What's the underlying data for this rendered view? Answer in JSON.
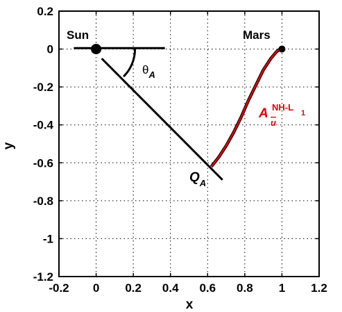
{
  "chart_data": {
    "type": "line",
    "title": "",
    "xlabel": "x",
    "ylabel": "y",
    "xlim": [
      -0.2,
      1.2
    ],
    "ylim": [
      -1.2,
      0.2
    ],
    "grid": true,
    "xticks": [
      "-0.2",
      "0",
      "0.2",
      "0.4",
      "0.6",
      "0.8",
      "1",
      "1.2"
    ],
    "yticks": [
      "0.2",
      "0",
      "-0.2",
      "-0.4",
      "-0.6",
      "-0.8",
      "-1",
      "-1.2"
    ],
    "xtick_values": [
      -0.2,
      0,
      0.2,
      0.4,
      0.6,
      0.8,
      1,
      1.2
    ],
    "ytick_values": [
      0.2,
      0,
      -0.2,
      -0.4,
      -0.6,
      -0.8,
      -1,
      -1.2
    ],
    "points": [
      {
        "name": "Sun",
        "x": 0,
        "y": 0
      },
      {
        "name": "Mars",
        "x": 1,
        "y": 0
      }
    ],
    "segments": [
      {
        "name": "horizontal-line",
        "x": [
          -0.12,
          0.37
        ],
        "y": [
          0.005,
          0.005
        ]
      },
      {
        "name": "Q-line",
        "x": [
          0.03,
          0.68
        ],
        "y": [
          -0.05,
          -0.69
        ]
      }
    ],
    "series": [
      {
        "color": "#e00000",
        "x": [
          0.62,
          0.66,
          0.7,
          0.74,
          0.78,
          0.82,
          0.86,
          0.9,
          0.94,
          0.97,
          0.99,
          1.0
        ],
        "y": [
          -0.62,
          -0.57,
          -0.51,
          -0.44,
          -0.36,
          -0.27,
          -0.19,
          -0.11,
          -0.05,
          -0.015,
          0.0,
          0.0
        ]
      }
    ],
    "annotations": {
      "sun": "Sun",
      "mars": "Mars",
      "theta": "θ",
      "theta_sub": "A",
      "q": "Q",
      "q_sub": "A",
      "curve_main": "A",
      "curve_sub": "u",
      "curve_sup": "NH-L",
      "curve_sup_sub": "1"
    }
  }
}
